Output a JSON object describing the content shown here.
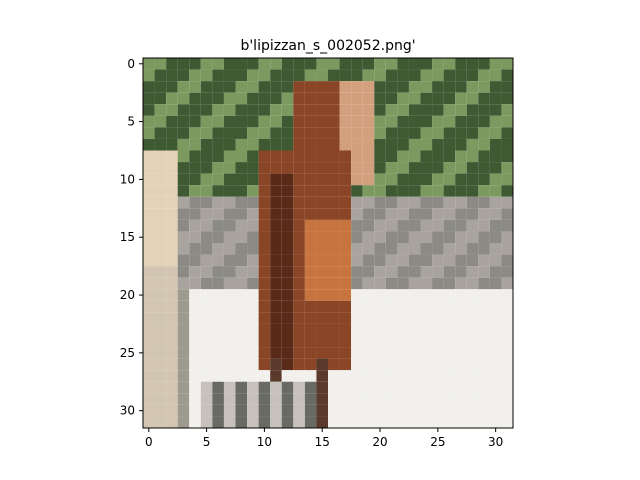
{
  "figure": {
    "title": "b'lipizzan_s_002052.png'",
    "image_description_name": "horse-thumbnail",
    "image_grid": {
      "rows": 32,
      "cols": 32
    },
    "x_ticks": [
      "0",
      "5",
      "10",
      "15",
      "20",
      "25",
      "30"
    ],
    "y_ticks": [
      "0",
      "5",
      "10",
      "15",
      "20",
      "25",
      "30"
    ],
    "colors": {
      "foliage_dark": "#3f5a33",
      "foliage_light": "#7c9a60",
      "horse_dark": "#5a2a18",
      "horse_mid": "#8a4526",
      "horse_light": "#c8743f",
      "ground_white": "#f1f0ec",
      "ground_gray": "#b4b1ad"
    }
  }
}
